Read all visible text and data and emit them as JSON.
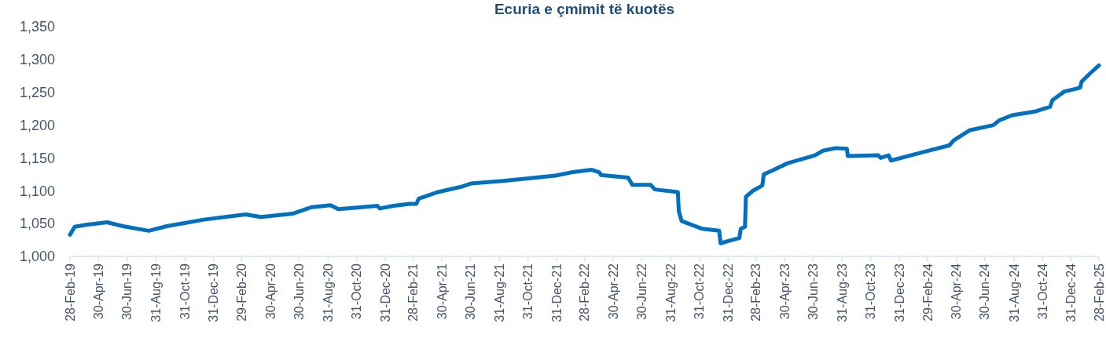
{
  "chart_data": {
    "type": "line",
    "title": "Ecuria e çmimit të kuotës",
    "x": [
      "2019-02-28",
      "2019-03-10",
      "2019-04-03",
      "2019-05-18",
      "2019-06-21",
      "2019-08-15",
      "2019-09-22",
      "2019-12-10",
      "2020-03-08",
      "2020-04-10",
      "2020-06-16",
      "2020-07-27",
      "2020-09-05",
      "2020-09-22",
      "2020-12-14",
      "2020-12-19",
      "2021-01-17",
      "2021-02-20",
      "2021-03-07",
      "2021-03-12",
      "2021-04-22",
      "2021-06-10",
      "2021-07-01",
      "2021-09-08",
      "2021-12-28",
      "2022-01-31",
      "2022-03-15",
      "2022-04-01",
      "2022-04-04",
      "2022-06-01",
      "2022-06-10",
      "2022-07-19",
      "2022-07-28",
      "2022-09-15",
      "2022-09-17",
      "2022-09-23",
      "2022-11-06",
      "2022-12-12",
      "2022-12-15",
      "2023-01-08",
      "2023-01-24",
      "2023-01-27",
      "2023-02-05",
      "2023-02-07",
      "2023-02-22",
      "2023-03-14",
      "2023-03-17",
      "2023-04-05",
      "2023-05-07",
      "2023-07-04",
      "2023-07-21",
      "2023-08-17",
      "2023-09-10",
      "2023-09-12",
      "2023-11-16",
      "2023-11-21",
      "2023-12-08",
      "2023-12-13",
      "2024-02-25",
      "2024-04-15",
      "2024-04-25",
      "2024-05-28",
      "2024-07-18",
      "2024-07-30",
      "2024-08-27",
      "2024-10-17",
      "2024-11-16",
      "2024-11-21",
      "2024-12-16",
      "2025-01-19",
      "2025-01-22",
      "2025-02-08",
      "2025-02-28"
    ],
    "series": [
      {
        "color": "#0070c0",
        "values": [
          1033,
          1045,
          1048,
          1052,
          1046,
          1039,
          1046,
          1056,
          1064,
          1060,
          1065,
          1075,
          1078,
          1072,
          1077,
          1073,
          1077,
          1080,
          1080,
          1088,
          1098,
          1106,
          1111,
          1115,
          1123,
          1128,
          1132,
          1128,
          1124,
          1120,
          1109,
          1109,
          1102,
          1098,
          1069,
          1054,
          1042,
          1039,
          1020,
          1025,
          1028,
          1042,
          1045,
          1091,
          1100,
          1108,
          1125,
          1131,
          1142,
          1154,
          1161,
          1165,
          1164,
          1153,
          1154,
          1150,
          1154,
          1146,
          1160,
          1169,
          1177,
          1192,
          1200,
          1207,
          1215,
          1221,
          1228,
          1238,
          1251,
          1257,
          1266,
          1278,
          1291
        ]
      }
    ],
    "xlim": [
      "2019-02-28",
      "2025-02-28"
    ],
    "xticks": [
      {
        "value": "2019-02-28",
        "label": "28-Feb-19"
      },
      {
        "value": "2019-04-30",
        "label": "30-Apr-19"
      },
      {
        "value": "2019-06-30",
        "label": "30-Jun-19"
      },
      {
        "value": "2019-08-31",
        "label": "31-Aug-19"
      },
      {
        "value": "2019-10-31",
        "label": "31-Oct-19"
      },
      {
        "value": "2019-12-31",
        "label": "31-Dec-19"
      },
      {
        "value": "2020-02-29",
        "label": "29-Feb-20"
      },
      {
        "value": "2020-04-30",
        "label": "30-Apr-20"
      },
      {
        "value": "2020-06-30",
        "label": "30-Jun-20"
      },
      {
        "value": "2020-08-31",
        "label": "31-Aug-20"
      },
      {
        "value": "2020-10-31",
        "label": "31-Oct-20"
      },
      {
        "value": "2020-12-31",
        "label": "31-Dec-20"
      },
      {
        "value": "2021-02-28",
        "label": "28-Feb-21"
      },
      {
        "value": "2021-04-30",
        "label": "30-Apr-21"
      },
      {
        "value": "2021-06-30",
        "label": "30-Jun-21"
      },
      {
        "value": "2021-08-31",
        "label": "31-Aug-21"
      },
      {
        "value": "2021-10-31",
        "label": "31-Oct-21"
      },
      {
        "value": "2021-12-31",
        "label": "31-Dec-21"
      },
      {
        "value": "2022-02-28",
        "label": "28-Feb-22"
      },
      {
        "value": "2022-04-30",
        "label": "30-Apr-22"
      },
      {
        "value": "2022-06-30",
        "label": "30-Jun-22"
      },
      {
        "value": "2022-08-31",
        "label": "31-Aug-22"
      },
      {
        "value": "2022-10-31",
        "label": "31-Oct-22"
      },
      {
        "value": "2022-12-31",
        "label": "31-Dec-22"
      },
      {
        "value": "2023-02-28",
        "label": "28-Feb-23"
      },
      {
        "value": "2023-04-30",
        "label": "30-Apr-23"
      },
      {
        "value": "2023-06-30",
        "label": "30-Jun-23"
      },
      {
        "value": "2023-08-31",
        "label": "31-Aug-23"
      },
      {
        "value": "2023-10-31",
        "label": "31-Oct-23"
      },
      {
        "value": "2023-12-31",
        "label": "31-Dec-23"
      },
      {
        "value": "2024-02-29",
        "label": "29-Feb-24"
      },
      {
        "value": "2024-04-30",
        "label": "30-Apr-24"
      },
      {
        "value": "2024-06-30",
        "label": "30-Jun-24"
      },
      {
        "value": "2024-08-31",
        "label": "31-Aug-24"
      },
      {
        "value": "2024-10-31",
        "label": "31-Oct-24"
      },
      {
        "value": "2024-12-31",
        "label": "31-Dec-24"
      },
      {
        "value": "2025-02-28",
        "label": "28-Feb-25"
      }
    ],
    "ylim": [
      1000,
      1350
    ],
    "yticks": [
      {
        "value": 1000,
        "label": "1,000"
      },
      {
        "value": 1050,
        "label": "1,050"
      },
      {
        "value": 1100,
        "label": "1,100"
      },
      {
        "value": 1150,
        "label": "1,150"
      },
      {
        "value": 1200,
        "label": "1,200"
      },
      {
        "value": 1250,
        "label": "1,250"
      },
      {
        "value": 1300,
        "label": "1,300"
      },
      {
        "value": 1350,
        "label": "1,350"
      }
    ]
  }
}
